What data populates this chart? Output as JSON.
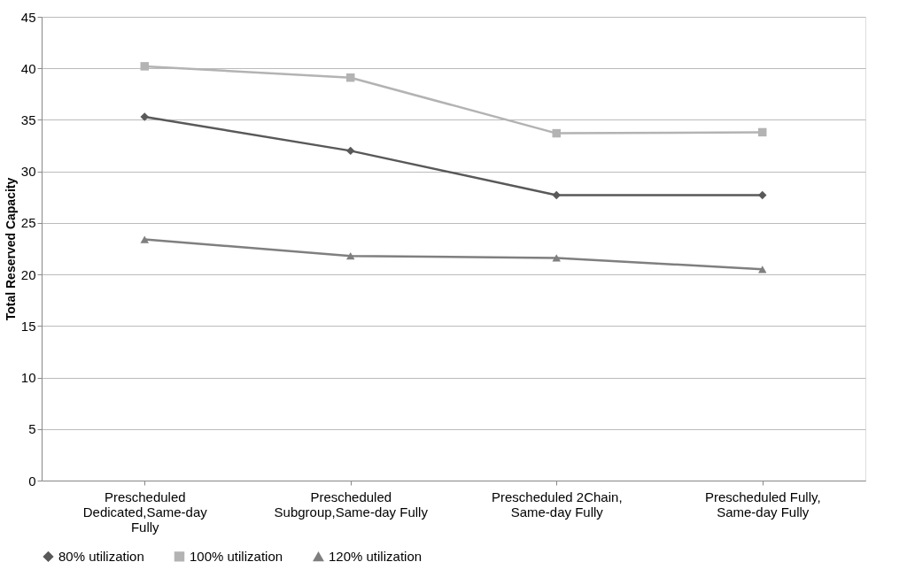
{
  "chart_data": {
    "type": "line",
    "ylabel": "Total Reserved Capacity",
    "categories": [
      "Prescheduled Dedicated,Same-day Fully",
      "Prescheduled Subgroup,Same-day Fully",
      "Prescheduled 2Chain, Same-day Fully",
      "Prescheduled Fully, Same-day Fully"
    ],
    "series": [
      {
        "name": "80% utilization",
        "color": "#595959",
        "marker": "diamond",
        "values": [
          35.3,
          32.0,
          27.7,
          27.7
        ]
      },
      {
        "name": "100% utilization",
        "color": "#b3b3b3",
        "marker": "square",
        "values": [
          40.2,
          39.1,
          33.7,
          33.8
        ]
      },
      {
        "name": "120% utilization",
        "color": "#7f7f7f",
        "marker": "triangle",
        "values": [
          23.4,
          21.8,
          21.6,
          20.5
        ]
      }
    ],
    "ylim": [
      0,
      45
    ],
    "yticks": [
      0,
      5,
      10,
      15,
      20,
      25,
      30,
      35,
      40,
      45
    ],
    "grid": "y",
    "legend": "bottom",
    "line_style": "solid"
  }
}
